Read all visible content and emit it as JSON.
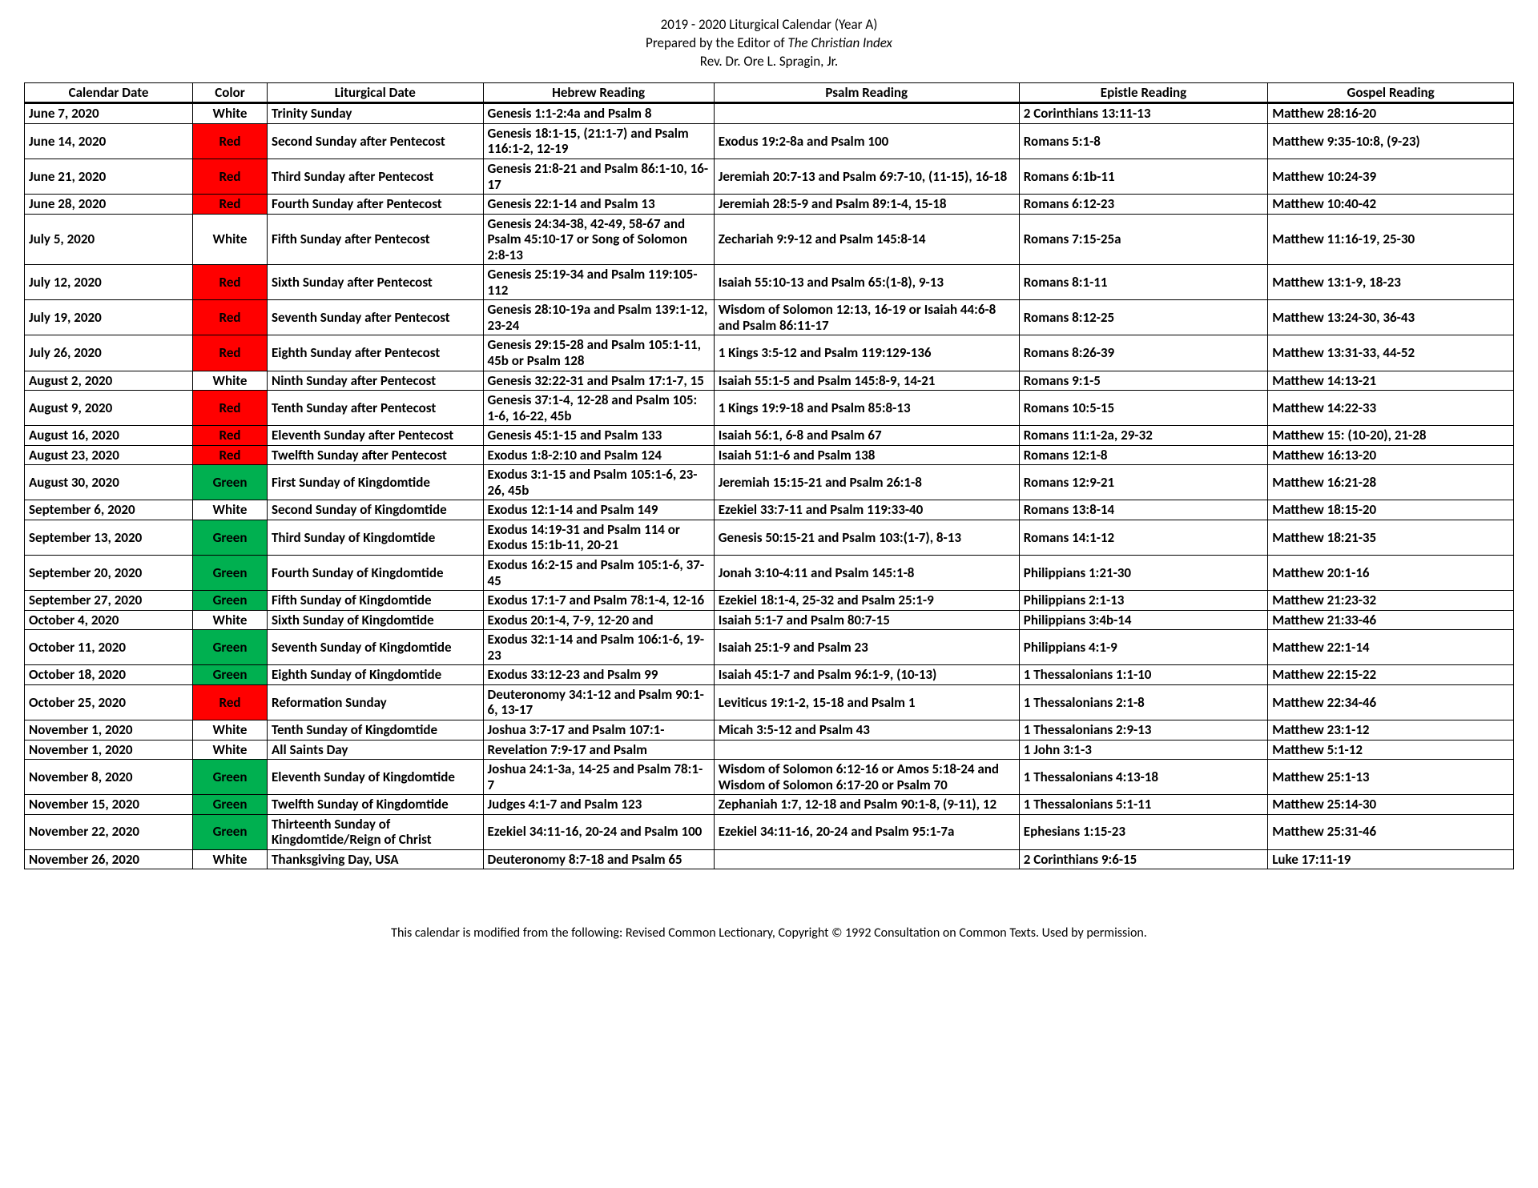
{
  "header": {
    "line1": "2019 - 2020 Liturgical Calendar (Year A)",
    "line2_pre": "Prepared by the Editor of ",
    "line2_ital": "The Christian Index",
    "line3": "Rev. Dr. Ore L. Spragin, Jr."
  },
  "columns": [
    "Calendar Date",
    "Color",
    "Liturgical Date",
    "Hebrew Reading",
    "Psalm Reading",
    "Epistle Reading",
    "Gospel Reading"
  ],
  "colors": {
    "White": {
      "bg": "#ffffff",
      "fg": "#000000"
    },
    "Red": {
      "bg": "#ff0000",
      "fg": "#000000"
    },
    "Green": {
      "bg": "#00b050",
      "fg": "#000000"
    }
  },
  "rows": [
    [
      "June 7, 2020",
      "White",
      "Trinity Sunday",
      "Genesis 1:1-2:4a and Psalm 8",
      "",
      "2 Corinthians 13:11-13",
      "Matthew 28:16-20"
    ],
    [
      "June 14, 2020",
      "Red",
      "Second Sunday after Pentecost",
      "Genesis 18:1-15, (21:1-7) and Psalm 116:1-2, 12-19",
      "Exodus 19:2-8a and Psalm 100",
      "Romans 5:1-8",
      "Matthew 9:35-10:8, (9-23)"
    ],
    [
      "June 21, 2020",
      "Red",
      "Third Sunday after Pentecost",
      "Genesis 21:8-21 and Psalm 86:1-10, 16-17",
      "Jeremiah 20:7-13 and Psalm 69:7-10, (11-15), 16-18",
      "Romans 6:1b-11",
      "Matthew 10:24-39"
    ],
    [
      "June 28, 2020",
      "Red",
      "Fourth Sunday after Pentecost",
      "Genesis 22:1-14 and Psalm 13",
      "Jeremiah 28:5-9 and Psalm 89:1-4, 15-18",
      "Romans 6:12-23",
      "Matthew 10:40-42"
    ],
    [
      "July 5, 2020",
      "White",
      "Fifth Sunday after Pentecost",
      "Genesis 24:34-38, 42-49, 58-67 and Psalm 45:10-17 or Song of Solomon 2:8-13",
      "Zechariah 9:9-12 and Psalm 145:8-14",
      "Romans 7:15-25a",
      "Matthew 11:16-19, 25-30"
    ],
    [
      "July 12, 2020",
      "Red",
      "Sixth Sunday after Pentecost",
      "Genesis 25:19-34 and Psalm 119:105-112",
      "Isaiah 55:10-13 and Psalm 65:(1-8), 9-13",
      "Romans 8:1-11",
      "Matthew 13:1-9, 18-23"
    ],
    [
      "July 19, 2020",
      "Red",
      "Seventh Sunday after Pentecost",
      "Genesis 28:10-19a and Psalm 139:1-12, 23-24",
      "Wisdom of Solomon 12:13, 16-19 or Isaiah 44:6-8 and Psalm 86:11-17",
      "Romans 8:12-25",
      "Matthew 13:24-30, 36-43"
    ],
    [
      "July 26, 2020",
      "Red",
      "Eighth Sunday after Pentecost",
      "Genesis 29:15-28 and Psalm 105:1-11, 45b or Psalm 128",
      "1 Kings 3:5-12 and Psalm 119:129-136",
      "Romans 8:26-39",
      "Matthew 13:31-33, 44-52"
    ],
    [
      "August 2, 2020",
      "White",
      "Ninth Sunday after Pentecost",
      "Genesis 32:22-31 and Psalm 17:1-7, 15",
      "Isaiah 55:1-5 and Psalm 145:8-9, 14-21",
      "Romans 9:1-5",
      "Matthew 14:13-21"
    ],
    [
      "August 9, 2020",
      "Red",
      "Tenth Sunday after Pentecost",
      "Genesis 37:1-4, 12-28 and Psalm 105: 1-6, 16-22, 45b",
      "1 Kings 19:9-18 and Psalm 85:8-13",
      "Romans 10:5-15",
      "Matthew 14:22-33"
    ],
    [
      "August 16, 2020",
      "Red",
      "Eleventh Sunday after Pentecost",
      "Genesis 45:1-15 and Psalm 133",
      "Isaiah 56:1, 6-8 and Psalm 67",
      "Romans 11:1-2a, 29-32",
      "Matthew 15: (10-20), 21-28"
    ],
    [
      "August 23, 2020",
      "Red",
      "Twelfth Sunday after Pentecost",
      "Exodus 1:8-2:10 and Psalm 124",
      "Isaiah 51:1-6 and Psalm 138",
      "Romans 12:1-8",
      "Matthew 16:13-20"
    ],
    [
      "August 30, 2020",
      "Green",
      "First Sunday of Kingdomtide",
      "Exodus 3:1-15 and Psalm 105:1-6, 23-26, 45b",
      "Jeremiah 15:15-21 and Psalm 26:1-8",
      "Romans 12:9-21",
      "Matthew 16:21-28"
    ],
    [
      "September 6, 2020",
      "White",
      "Second Sunday of Kingdomtide",
      "Exodus 12:1-14 and Psalm 149",
      "Ezekiel 33:7-11 and Psalm 119:33-40",
      "Romans 13:8-14",
      "Matthew 18:15-20"
    ],
    [
      "September 13, 2020",
      "Green",
      "Third Sunday of Kingdomtide",
      "Exodus 14:19-31 and Psalm 114 or Exodus 15:1b-11, 20-21",
      "Genesis 50:15-21 and Psalm 103:(1-7), 8-13",
      "Romans 14:1-12",
      "Matthew 18:21-35"
    ],
    [
      "September 20, 2020",
      "Green",
      "Fourth Sunday of Kingdomtide",
      "Exodus 16:2-15 and Psalm 105:1-6, 37-45",
      "Jonah 3:10-4:11 and Psalm 145:1-8",
      "Philippians 1:21-30",
      "Matthew 20:1-16"
    ],
    [
      "September 27, 2020",
      "Green",
      "Fifth Sunday of Kingdomtide",
      "Exodus 17:1-7 and Psalm 78:1-4, 12-16",
      "Ezekiel 18:1-4, 25-32 and Psalm 25:1-9",
      "Philippians 2:1-13",
      "Matthew 21:23-32"
    ],
    [
      "October 4, 2020",
      "White",
      "Sixth Sunday of Kingdomtide",
      "Exodus 20:1-4, 7-9, 12-20 and",
      "Isaiah 5:1-7 and Psalm 80:7-15",
      "Philippians 3:4b-14",
      "Matthew 21:33-46"
    ],
    [
      "October 11, 2020",
      "Green",
      "Seventh Sunday of Kingdomtide",
      "Exodus 32:1-14 and Psalm 106:1-6, 19-23",
      "Isaiah 25:1-9 and Psalm 23",
      "Philippians 4:1-9",
      "Matthew 22:1-14"
    ],
    [
      "October 18, 2020",
      "Green",
      "Eighth Sunday of Kingdomtide",
      "Exodus 33:12-23 and Psalm 99",
      "Isaiah 45:1-7 and Psalm 96:1-9, (10-13)",
      "1 Thessalonians 1:1-10",
      "Matthew 22:15-22"
    ],
    [
      "October 25, 2020",
      "Red",
      "Reformation Sunday",
      "Deuteronomy 34:1-12 and Psalm 90:1-6, 13-17",
      "Leviticus 19:1-2, 15-18 and Psalm 1",
      "1 Thessalonians 2:1-8",
      "Matthew 22:34-46"
    ],
    [
      "November 1, 2020",
      "White",
      "Tenth Sunday of Kingdomtide",
      "Joshua 3:7-17 and Psalm 107:1-",
      "Micah 3:5-12 and Psalm 43",
      "1 Thessalonians 2:9-13",
      "Matthew 23:1-12"
    ],
    [
      "November 1, 2020",
      "White",
      "All Saints Day",
      "Revelation 7:9-17 and Psalm",
      "",
      "1 John 3:1-3",
      "Matthew 5:1-12"
    ],
    [
      "November 8, 2020",
      "Green",
      "Eleventh Sunday of Kingdomtide",
      "Joshua 24:1-3a, 14-25 and Psalm 78:1-7",
      "Wisdom of Solomon 6:12-16 or Amos 5:18-24 and Wisdom of Solomon 6:17-20 or Psalm 70",
      "1 Thessalonians 4:13-18",
      "Matthew 25:1-13"
    ],
    [
      "November 15, 2020",
      "Green",
      "Twelfth Sunday of Kingdomtide",
      "Judges 4:1-7 and Psalm 123",
      "Zephaniah 1:7, 12-18 and Psalm 90:1-8, (9-11), 12",
      "1 Thessalonians 5:1-11",
      "Matthew 25:14-30"
    ],
    [
      "November 22, 2020",
      "Green",
      "Thirteenth Sunday of Kingdomtide/Reign of Christ",
      "Ezekiel 34:11-16, 20-24 and Psalm 100",
      "Ezekiel 34:11-16, 20-24 and Psalm 95:1-7a",
      "Ephesians 1:15-23",
      "Matthew 25:31-46"
    ],
    [
      "November 26, 2020",
      "White",
      "Thanksgiving Day, USA",
      "Deuteronomy 8:7-18 and Psalm 65",
      "",
      "2 Corinthians 9:6-15",
      "Luke 17:11-19"
    ]
  ],
  "footer": "This calendar is modified from the following: Revised Common Lectionary, Copyright © 1992 Consultation on Common Texts. Used by permission."
}
